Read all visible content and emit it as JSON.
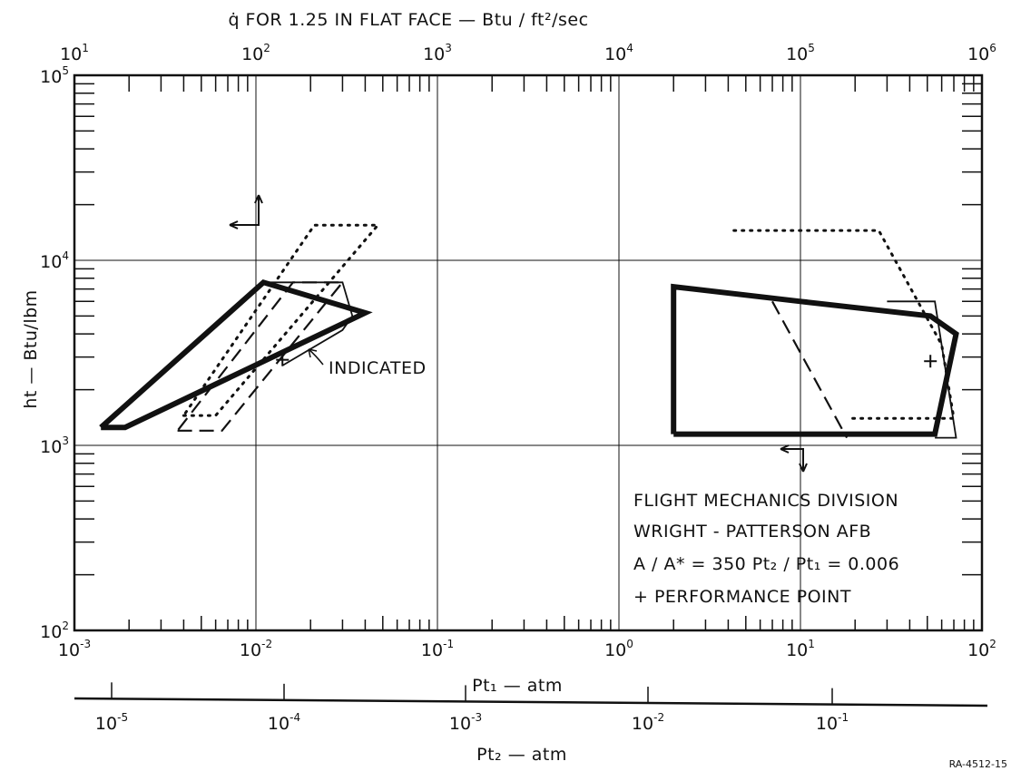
{
  "chart_data": {
    "type": "line",
    "title": "",
    "top_axis": {
      "label": "q̇ FOR 1.25 IN FLAT FACE — Btu / ft²/sec",
      "scale": "log",
      "range": [
        10,
        1000000
      ],
      "ticks": [
        {
          "base": "10",
          "exp": "1"
        },
        {
          "base": "10",
          "exp": "2"
        },
        {
          "base": "10",
          "exp": "3"
        },
        {
          "base": "10",
          "exp": "4"
        },
        {
          "base": "10",
          "exp": "5"
        },
        {
          "base": "10",
          "exp": "6"
        }
      ]
    },
    "x_axis": {
      "label": "Pt₁ — atm",
      "scale": "log",
      "range": [
        0.001,
        100
      ],
      "ticks": [
        {
          "base": "10",
          "exp": "-3"
        },
        {
          "base": "10",
          "exp": "-2"
        },
        {
          "base": "10",
          "exp": "-1"
        },
        {
          "base": "10",
          "exp": "0"
        },
        {
          "base": "10",
          "exp": "1"
        },
        {
          "base": "10",
          "exp": "2"
        }
      ]
    },
    "y_axis": {
      "label": "ht — Btu/lbm",
      "scale": "log",
      "range": [
        100,
        100000
      ],
      "ticks": [
        {
          "base": "10",
          "exp": "2"
        },
        {
          "base": "10",
          "exp": "3"
        },
        {
          "base": "10",
          "exp": "4"
        },
        {
          "base": "10",
          "exp": "5"
        }
      ]
    },
    "bottom_axis": {
      "label": "Pt₂ — atm",
      "scale": "log",
      "ticks": [
        {
          "base": "10",
          "exp": "-5"
        },
        {
          "base": "10",
          "exp": "-4"
        },
        {
          "base": "10",
          "exp": "-3"
        },
        {
          "base": "10",
          "exp": "-2"
        },
        {
          "base": "10",
          "exp": "-1"
        }
      ]
    },
    "grid": true,
    "series": [
      {
        "style": "thick-solid",
        "points": [
          [
            0.0014,
            1250
          ],
          [
            0.0019,
            1250
          ],
          [
            0.04,
            5200
          ],
          [
            0.011,
            7600
          ],
          [
            0.0014,
            1250
          ]
        ]
      },
      {
        "style": "thin-solid",
        "points": [
          [
            0.011,
            7600
          ],
          [
            0.03,
            7600
          ],
          [
            0.034,
            5000
          ],
          [
            0.03,
            4200
          ],
          [
            0.014,
            2700
          ]
        ]
      },
      {
        "style": "dashed",
        "points": [
          [
            0.0037,
            1200
          ],
          [
            0.0065,
            1200
          ],
          [
            0.03,
            7600
          ],
          [
            0.016,
            7600
          ],
          [
            0.0037,
            1200
          ]
        ]
      },
      {
        "style": "dotted",
        "points": [
          [
            0.004,
            1450
          ],
          [
            0.006,
            1450
          ],
          [
            0.047,
            15500
          ],
          [
            0.021,
            15500
          ],
          [
            0.004,
            1450
          ]
        ]
      },
      {
        "style": "thick-solid",
        "points": [
          [
            2,
            1150
          ],
          [
            55,
            1150
          ],
          [
            72,
            4000
          ],
          [
            52,
            5000
          ],
          [
            10,
            6000
          ],
          [
            2,
            7200
          ],
          [
            2,
            1150
          ]
        ]
      },
      {
        "style": "thin-solid",
        "points": [
          [
            30,
            6000
          ],
          [
            55,
            6000
          ],
          [
            72,
            1100
          ],
          [
            55,
            1100
          ]
        ]
      },
      {
        "style": "dashed",
        "points": [
          [
            7,
            6000
          ],
          [
            18,
            1100
          ]
        ]
      },
      {
        "style": "dotted",
        "points": [
          [
            4.3,
            14500
          ],
          [
            27,
            14500
          ],
          [
            60,
            3500
          ],
          [
            70,
            1400
          ],
          [
            18,
            1400
          ]
        ]
      }
    ],
    "performance_points": [
      [
        0.014,
        2900
      ],
      [
        52,
        2850
      ]
    ],
    "annotations": [
      "INDICATED",
      "FLIGHT MECHANICS DIVISION",
      "WRIGHT - PATTERSON AFB",
      "A / A* = 350   Pt₂ / Pt₁ = 0.006",
      "+ PERFORMANCE POINT",
      "RA-4512-15"
    ]
  }
}
